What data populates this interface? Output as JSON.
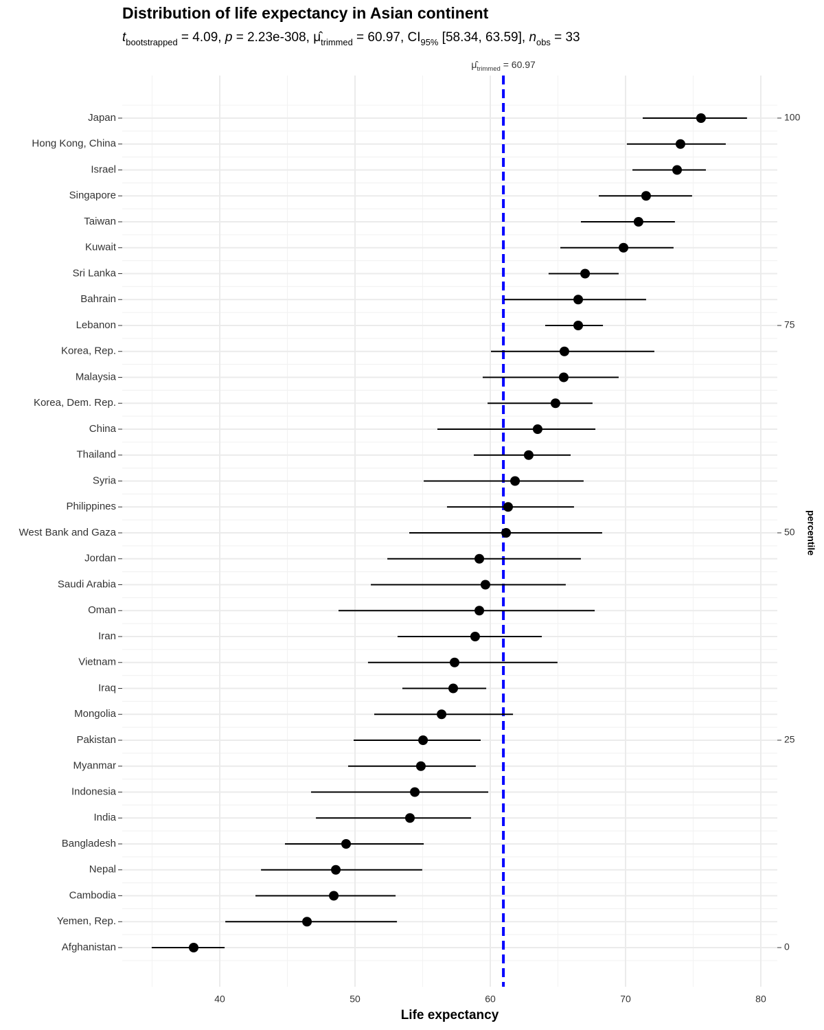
{
  "chart_data": {
    "type": "dot_ci",
    "title": "Distribution of life expectancy in Asian continent",
    "subtitle": [
      {
        "text": "t",
        "style": "italic"
      },
      {
        "text": "bootstrapped",
        "style": "sub"
      },
      {
        "text": " = 4.09, ",
        "style": "normal"
      },
      {
        "text": "p",
        "style": "italic"
      },
      {
        "text": " = 2.23e-308, ",
        "style": "normal"
      },
      {
        "text": "μ̂",
        "style": "normal"
      },
      {
        "text": "trimmed",
        "style": "sub"
      },
      {
        "text": " = 60.97, CI",
        "style": "normal"
      },
      {
        "text": "95%",
        "style": "sub"
      },
      {
        "text": " [58.34, 63.59], ",
        "style": "normal"
      },
      {
        "text": "n",
        "style": "italic"
      },
      {
        "text": "obs",
        "style": "sub"
      },
      {
        "text": " = 33",
        "style": "normal"
      }
    ],
    "x_label": "Life expectancy",
    "y2_label": "percentile",
    "categories": [
      "Japan",
      "Hong Kong, China",
      "Israel",
      "Singapore",
      "Taiwan",
      "Kuwait",
      "Sri Lanka",
      "Bahrain",
      "Lebanon",
      "Korea, Rep.",
      "Malaysia",
      "Korea, Dem. Rep.",
      "China",
      "Thailand",
      "Syria",
      "Philippines",
      "West Bank and Gaza",
      "Jordan",
      "Saudi Arabia",
      "Oman",
      "Iran",
      "Vietnam",
      "Iraq",
      "Mongolia",
      "Pakistan",
      "Myanmar",
      "Indonesia",
      "India",
      "Bangladesh",
      "Nepal",
      "Cambodia",
      "Yemen, Rep.",
      "Afghanistan"
    ],
    "values": [
      75.58,
      74.06,
      73.81,
      71.52,
      70.96,
      69.85,
      67.01,
      66.5,
      66.5,
      65.48,
      65.43,
      64.82,
      63.5,
      62.84,
      61.83,
      61.32,
      61.17,
      59.19,
      59.64,
      59.19,
      58.88,
      57.36,
      57.26,
      56.4,
      55.03,
      54.87,
      54.42,
      54.06,
      49.34,
      48.58,
      48.43,
      46.45,
      38.07
    ],
    "ci_low": [
      71.27,
      70.1,
      70.51,
      68.02,
      66.7,
      65.18,
      64.31,
      61.02,
      64.06,
      60.05,
      59.44,
      59.8,
      56.09,
      58.78,
      55.08,
      56.8,
      54.01,
      52.39,
      51.17,
      48.78,
      53.15,
      50.96,
      53.5,
      51.42,
      49.9,
      49.49,
      46.75,
      47.11,
      44.82,
      43.05,
      42.64,
      40.41,
      34.97
    ],
    "ci_high": [
      78.98,
      77.41,
      75.94,
      74.92,
      73.65,
      73.55,
      69.49,
      71.52,
      68.33,
      72.13,
      69.49,
      67.56,
      67.77,
      65.94,
      66.9,
      66.19,
      68.27,
      66.7,
      65.58,
      67.72,
      63.81,
      64.97,
      59.7,
      61.68,
      59.29,
      58.93,
      59.85,
      58.58,
      55.08,
      54.97,
      53.0,
      53.1,
      40.36
    ],
    "color": "#000000",
    "xlim": [
      32.79,
      81.22
    ],
    "xticks": [
      40,
      50,
      60,
      70,
      80
    ],
    "y2lim": [
      -4.72,
      105.13
    ],
    "y2ticks": [
      0,
      25,
      50,
      75,
      100
    ],
    "reference_line": {
      "value": 60.97,
      "color": "#0000ff",
      "label": [
        {
          "text": "μ̂",
          "style": "normal"
        },
        {
          "text": "trimmed",
          "style": "sub"
        },
        {
          "text": " = 60.97",
          "style": "normal"
        }
      ]
    },
    "grid": true
  }
}
